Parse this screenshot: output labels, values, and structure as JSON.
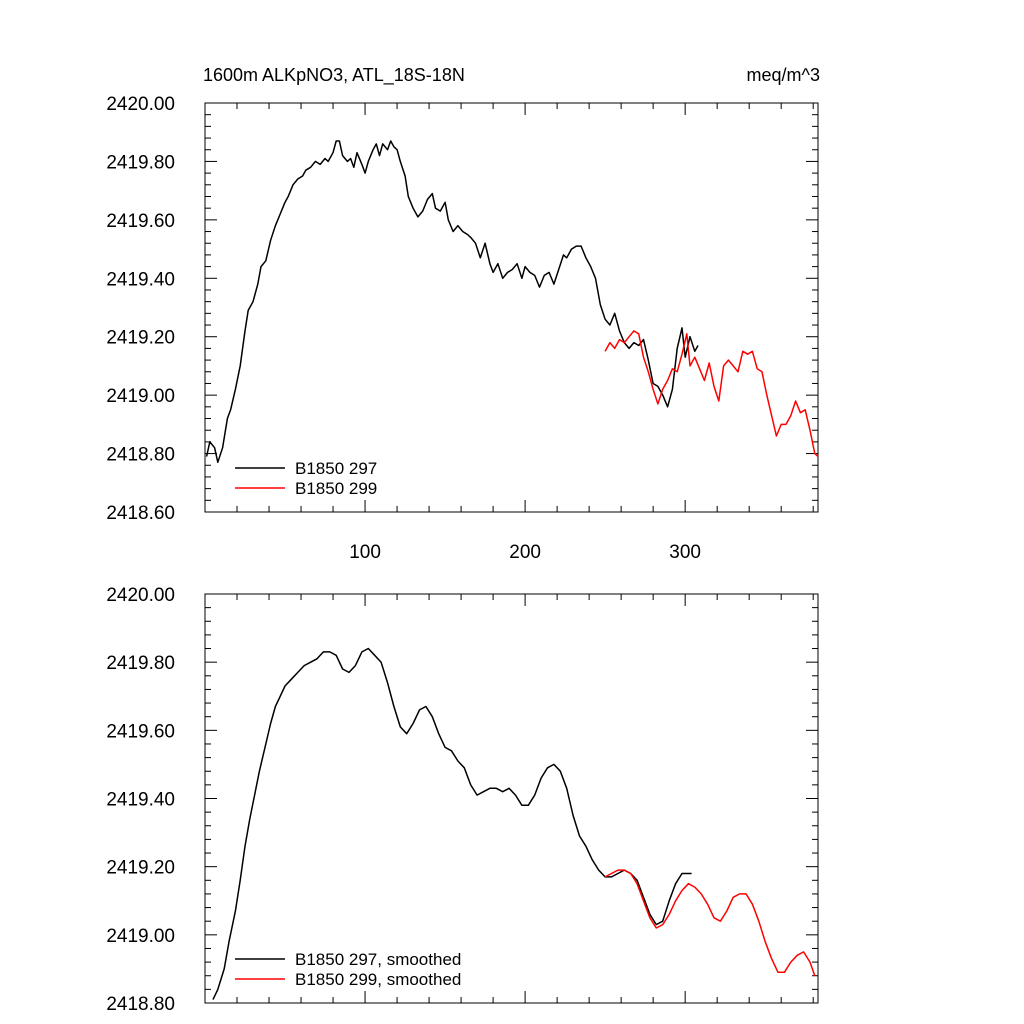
{
  "figure": {
    "title_left": "1600m ALKpNO3, ATL_18S-18N",
    "title_right": "meq/m^3"
  },
  "chart_data": [
    {
      "type": "line",
      "title": "1600m ALKpNO3, ATL_18S-18N",
      "units": "meq/m^3",
      "xlabel": "",
      "ylabel": "",
      "xlim": [
        0,
        383
      ],
      "ylim": [
        2418.6,
        2420.0
      ],
      "x_ticks": [
        100,
        200,
        300
      ],
      "x_tick_labels": [
        "100",
        "200",
        "300"
      ],
      "y_ticks": [
        2418.6,
        2418.8,
        2419.0,
        2419.2,
        2419.4,
        2419.6,
        2419.8,
        2420.0
      ],
      "y_tick_labels": [
        "2418.60",
        "2418.80",
        "2419.00",
        "2419.20",
        "2419.40",
        "2419.60",
        "2419.80",
        "2420.00"
      ],
      "grid": false,
      "legend_position": "bottom-left",
      "series": [
        {
          "name": "B1850 297",
          "color": "#000000",
          "x": [
            1,
            3,
            6,
            8,
            11,
            14,
            16,
            19,
            22,
            25,
            27,
            30,
            33,
            35,
            38,
            41,
            44,
            47,
            50,
            52,
            55,
            58,
            61,
            63,
            66,
            69,
            72,
            75,
            77,
            80,
            82,
            84,
            86,
            89,
            91,
            93,
            95,
            98,
            100,
            102,
            105,
            107,
            109,
            111,
            114,
            116,
            118,
            120,
            122,
            125,
            127,
            130,
            133,
            136,
            139,
            142,
            144,
            147,
            150,
            152,
            155,
            158,
            161,
            164,
            166,
            169,
            172,
            175,
            178,
            180,
            183,
            186,
            189,
            192,
            195,
            198,
            200,
            203,
            206,
            209,
            212,
            215,
            218,
            221,
            224,
            226,
            229,
            232,
            235,
            238,
            241,
            244,
            247,
            250,
            253,
            256,
            259,
            262,
            265,
            268,
            271,
            274,
            277,
            280,
            283,
            286,
            289,
            292,
            295,
            298,
            300,
            303,
            306,
            308
          ],
          "y": [
            2418.79,
            2418.84,
            2418.82,
            2418.77,
            2418.82,
            2418.92,
            2418.95,
            2419.02,
            2419.1,
            2419.22,
            2419.29,
            2419.32,
            2419.38,
            2419.44,
            2419.46,
            2419.53,
            2419.58,
            2419.62,
            2419.66,
            2419.68,
            2419.72,
            2419.74,
            2419.75,
            2419.77,
            2419.78,
            2419.8,
            2419.79,
            2419.81,
            2419.8,
            2419.83,
            2419.87,
            2419.87,
            2419.82,
            2419.8,
            2419.81,
            2419.78,
            2419.83,
            2419.79,
            2419.76,
            2419.8,
            2419.84,
            2419.86,
            2419.82,
            2419.86,
            2419.84,
            2419.87,
            2419.85,
            2419.84,
            2419.8,
            2419.75,
            2419.68,
            2419.64,
            2419.61,
            2419.63,
            2419.67,
            2419.69,
            2419.64,
            2419.63,
            2419.66,
            2419.6,
            2419.56,
            2419.58,
            2419.56,
            2419.55,
            2419.54,
            2419.52,
            2419.47,
            2419.52,
            2419.45,
            2419.42,
            2419.45,
            2419.4,
            2419.42,
            2419.43,
            2419.45,
            2419.4,
            2419.44,
            2419.42,
            2419.41,
            2419.37,
            2419.41,
            2419.42,
            2419.38,
            2419.43,
            2419.48,
            2419.47,
            2419.5,
            2419.51,
            2419.51,
            2419.47,
            2419.44,
            2419.4,
            2419.31,
            2419.26,
            2419.24,
            2419.28,
            2419.22,
            2419.18,
            2419.16,
            2419.18,
            2419.17,
            2419.19,
            2419.12,
            2419.04,
            2419.03,
            2419.0,
            2418.96,
            2419.02,
            2419.16,
            2419.23,
            2419.13,
            2419.2,
            2419.15,
            2419.17
          ]
        },
        {
          "name": "B1850 299",
          "color": "#ff0000",
          "x": [
            250,
            253,
            256,
            259,
            262,
            265,
            268,
            271,
            274,
            277,
            280,
            283,
            286,
            289,
            292,
            295,
            298,
            301,
            303,
            306,
            309,
            312,
            315,
            318,
            321,
            324,
            327,
            330,
            333,
            336,
            339,
            342,
            345,
            348,
            351,
            354,
            357,
            360,
            363,
            366,
            369,
            372,
            375,
            378,
            381,
            383
          ],
          "y": [
            2419.15,
            2419.18,
            2419.16,
            2419.19,
            2419.18,
            2419.2,
            2419.22,
            2419.21,
            2419.13,
            2419.08,
            2419.02,
            2418.97,
            2419.02,
            2419.05,
            2419.09,
            2419.08,
            2419.14,
            2419.21,
            2419.1,
            2419.13,
            2419.09,
            2419.05,
            2419.11,
            2419.03,
            2418.98,
            2419.1,
            2419.12,
            2419.1,
            2419.08,
            2419.15,
            2419.14,
            2419.15,
            2419.09,
            2419.08,
            2419.0,
            2418.93,
            2418.86,
            2418.9,
            2418.9,
            2418.93,
            2418.98,
            2418.94,
            2418.95,
            2418.88,
            2418.8,
            2418.79
          ]
        }
      ]
    },
    {
      "type": "line",
      "title": "",
      "xlabel": "",
      "ylabel": "",
      "xlim": [
        0,
        383
      ],
      "ylim": [
        2418.8,
        2420.0
      ],
      "x_ticks": [
        100,
        200,
        300
      ],
      "x_tick_labels": [],
      "y_ticks": [
        2418.8,
        2419.0,
        2419.2,
        2419.4,
        2419.6,
        2419.8,
        2420.0
      ],
      "y_tick_labels": [
        "2418.80",
        "2419.00",
        "2419.20",
        "2419.40",
        "2419.60",
        "2419.80",
        "2420.00"
      ],
      "grid": false,
      "legend_position": "bottom-left",
      "series": [
        {
          "name": "B1850 297, smoothed",
          "color": "#000000",
          "x": [
            5,
            8,
            12,
            15,
            19,
            22,
            25,
            28,
            31,
            34,
            38,
            41,
            44,
            47,
            50,
            54,
            58,
            62,
            66,
            70,
            74,
            78,
            82,
            86,
            90,
            94,
            98,
            102,
            106,
            110,
            114,
            118,
            122,
            126,
            130,
            134,
            138,
            142,
            146,
            150,
            154,
            158,
            162,
            166,
            170,
            174,
            178,
            182,
            186,
            190,
            194,
            198,
            202,
            206,
            210,
            214,
            218,
            222,
            226,
            230,
            234,
            238,
            242,
            246,
            250,
            254,
            258,
            262,
            266,
            270,
            274,
            278,
            282,
            286,
            290,
            294,
            298,
            302,
            304
          ],
          "y": [
            2418.81,
            2418.84,
            2418.9,
            2418.98,
            2419.07,
            2419.16,
            2419.26,
            2419.34,
            2419.41,
            2419.48,
            2419.56,
            2419.62,
            2419.67,
            2419.7,
            2419.73,
            2419.75,
            2419.77,
            2419.79,
            2419.8,
            2419.81,
            2419.83,
            2419.83,
            2419.82,
            2419.78,
            2419.77,
            2419.79,
            2419.83,
            2419.84,
            2419.82,
            2419.8,
            2419.74,
            2419.67,
            2419.61,
            2419.59,
            2419.62,
            2419.66,
            2419.67,
            2419.64,
            2419.59,
            2419.55,
            2419.54,
            2419.51,
            2419.49,
            2419.44,
            2419.41,
            2419.42,
            2419.43,
            2419.43,
            2419.42,
            2419.43,
            2419.41,
            2419.38,
            2419.38,
            2419.41,
            2419.46,
            2419.49,
            2419.5,
            2419.48,
            2419.43,
            2419.35,
            2419.29,
            2419.26,
            2419.22,
            2419.19,
            2419.17,
            2419.17,
            2419.18,
            2419.19,
            2419.18,
            2419.16,
            2419.11,
            2419.06,
            2419.03,
            2419.04,
            2419.1,
            2419.15,
            2419.18,
            2419.18,
            2419.18
          ]
        },
        {
          "name": "B1850 299, smoothed",
          "color": "#ff0000",
          "x": [
            250,
            254,
            258,
            262,
            266,
            270,
            274,
            278,
            282,
            286,
            290,
            294,
            298,
            302,
            306,
            310,
            314,
            318,
            322,
            326,
            330,
            334,
            338,
            342,
            346,
            350,
            354,
            358,
            362,
            366,
            370,
            374,
            378,
            381
          ],
          "y": [
            2419.17,
            2419.18,
            2419.19,
            2419.19,
            2419.18,
            2419.15,
            2419.1,
            2419.05,
            2419.02,
            2419.03,
            2419.06,
            2419.1,
            2419.13,
            2419.15,
            2419.14,
            2419.12,
            2419.09,
            2419.05,
            2419.04,
            2419.07,
            2419.11,
            2419.12,
            2419.12,
            2419.09,
            2419.04,
            2418.98,
            2418.93,
            2418.89,
            2418.89,
            2418.92,
            2418.94,
            2418.95,
            2418.92,
            2418.88
          ]
        }
      ]
    }
  ]
}
